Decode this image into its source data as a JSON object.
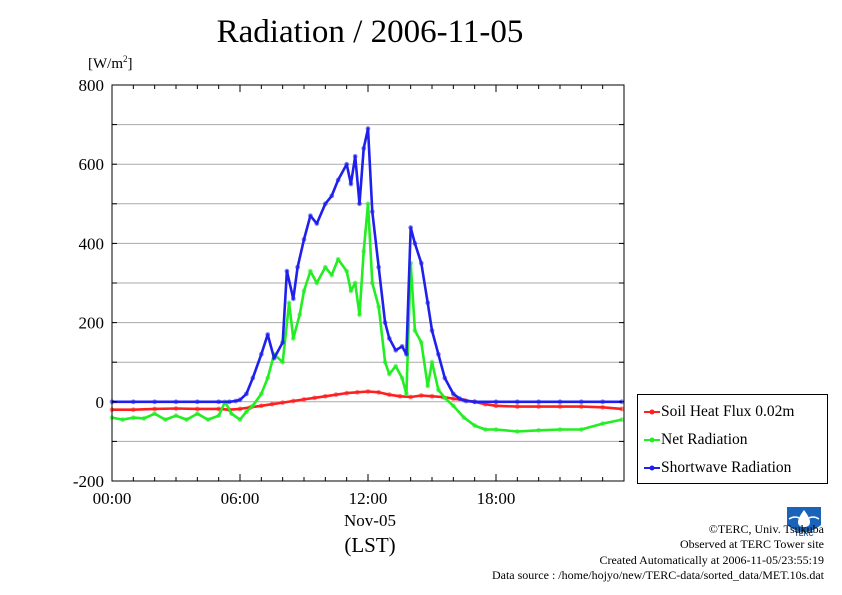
{
  "chart_data": {
    "type": "line",
    "title": "Radiation / 2006-11-05",
    "ylabel": "[W/m2]",
    "ylabel_base": "[W/m",
    "ylabel_sup": "2",
    "ylabel_end": "]",
    "ylim": [
      -200,
      800
    ],
    "yticks": [
      800,
      600,
      400,
      200,
      0,
      -200
    ],
    "ytick_labels": [
      "800",
      "600",
      "400",
      "200",
      "0",
      "-200"
    ],
    "xlim": [
      0,
      24
    ],
    "xticks": [
      0,
      6,
      12,
      18
    ],
    "xtick_labels": [
      "00:00",
      "06:00",
      "12:00",
      "18:00"
    ],
    "xlabel_date": "Nov-05",
    "xlabel_unit": "(LST)",
    "grid": true,
    "legend_position": "bottom-right-outside",
    "series": [
      {
        "name": "Soil Heat Flux 0.02m",
        "color": "#ff1f1f",
        "x": [
          0,
          1,
          2,
          3,
          4,
          5,
          5.5,
          6,
          6.5,
          7,
          7.5,
          8,
          8.5,
          9,
          9.5,
          10,
          10.5,
          11,
          11.5,
          12,
          12.5,
          13,
          13.5,
          14,
          14.5,
          15,
          15.5,
          16,
          16.5,
          17,
          17.5,
          18,
          19,
          20,
          21,
          22,
          23,
          23.9
        ],
        "y": [
          -20,
          -20,
          -18,
          -17,
          -18,
          -18,
          -20,
          -18,
          -14,
          -10,
          -6,
          -2,
          2,
          6,
          10,
          14,
          18,
          22,
          24,
          26,
          24,
          18,
          14,
          12,
          16,
          14,
          12,
          8,
          4,
          0,
          -6,
          -10,
          -12,
          -12,
          -12,
          -12,
          -14,
          -18
        ]
      },
      {
        "name": "Net Radiation",
        "color": "#22ee22",
        "x": [
          0,
          0.5,
          1,
          1.5,
          2,
          2.5,
          3,
          3.5,
          4,
          4.5,
          5,
          5.3,
          5.6,
          6,
          6.3,
          6.6,
          7,
          7.3,
          7.6,
          8,
          8.3,
          8.5,
          8.8,
          9,
          9.3,
          9.6,
          10,
          10.3,
          10.6,
          11,
          11.2,
          11.4,
          11.6,
          11.8,
          12,
          12.2,
          12.5,
          12.8,
          13,
          13.3,
          13.6,
          13.8,
          14,
          14.2,
          14.5,
          14.8,
          15,
          15.3,
          15.6,
          16,
          16.5,
          17,
          17.5,
          18,
          19,
          20,
          21,
          22,
          23,
          23.9
        ],
        "y": [
          -40,
          -45,
          -40,
          -42,
          -30,
          -45,
          -35,
          -45,
          -30,
          -45,
          -35,
          0,
          -30,
          -45,
          -25,
          -10,
          20,
          60,
          120,
          100,
          250,
          160,
          220,
          280,
          330,
          300,
          340,
          320,
          360,
          330,
          280,
          300,
          220,
          380,
          500,
          300,
          240,
          100,
          70,
          90,
          60,
          20,
          350,
          180,
          150,
          40,
          100,
          30,
          10,
          -10,
          -40,
          -60,
          -70,
          -70,
          -75,
          -72,
          -70,
          -70,
          -55,
          -45
        ]
      },
      {
        "name": "Shortwave Radiation",
        "color": "#2020ee",
        "x": [
          0,
          1,
          2,
          3,
          4,
          5,
          5.5,
          5.8,
          6,
          6.3,
          6.6,
          7,
          7.3,
          7.6,
          8,
          8.2,
          8.5,
          8.7,
          9,
          9.3,
          9.6,
          10,
          10.3,
          10.6,
          11,
          11.2,
          11.4,
          11.6,
          11.8,
          12,
          12.2,
          12.5,
          12.8,
          13,
          13.3,
          13.6,
          13.8,
          14,
          14.2,
          14.5,
          14.8,
          15,
          15.3,
          15.6,
          16,
          16.3,
          16.6,
          17,
          18,
          19,
          20,
          21,
          22,
          23,
          23.9
        ],
        "y": [
          0,
          0,
          0,
          0,
          0,
          0,
          0,
          2,
          5,
          20,
          60,
          120,
          170,
          110,
          150,
          330,
          260,
          340,
          410,
          470,
          450,
          500,
          520,
          560,
          600,
          550,
          620,
          500,
          640,
          690,
          480,
          340,
          200,
          160,
          130,
          140,
          120,
          440,
          400,
          350,
          250,
          180,
          120,
          60,
          20,
          8,
          2,
          0,
          0,
          0,
          0,
          0,
          0,
          0,
          0
        ]
      }
    ]
  },
  "credits": {
    "copyright": "©TERC, Univ. Tsukuba",
    "site": "Observed at TERC Tower site",
    "created": "Created Automatically at 2006-11-05/23:55:19",
    "source": "Data source : /home/hojyo/new/TERC-data/sorted_data/MET.10s.dat"
  },
  "logo": {
    "text": "TERC",
    "color": "#1a63b8"
  }
}
